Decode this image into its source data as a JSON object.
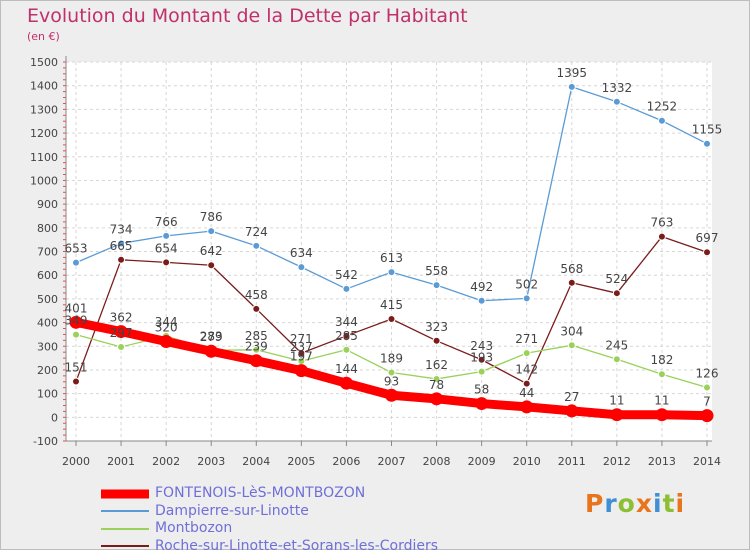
{
  "title": "Evolution du Montant de la Dette par Habitant",
  "unit_label": "(en €)",
  "logo": {
    "text": "Proxiti",
    "letters": [
      {
        "ch": "P",
        "color": "#e8741c"
      },
      {
        "ch": "r",
        "color": "#3f8fd3"
      },
      {
        "ch": "o",
        "color": "#8dbf32"
      },
      {
        "ch": "x",
        "color": "#e8741c"
      },
      {
        "ch": "i",
        "color": "#3f8fd3"
      },
      {
        "ch": "t",
        "color": "#8dbf32"
      },
      {
        "ch": "i",
        "color": "#e8741c"
      }
    ]
  },
  "chart_data": {
    "type": "line",
    "title": "Evolution du Montant de la Dette par Habitant",
    "ylabel": "(en €)",
    "x": [
      2000,
      2001,
      2002,
      2003,
      2004,
      2005,
      2006,
      2007,
      2008,
      2009,
      2010,
      2011,
      2012,
      2013,
      2014
    ],
    "ylim": [
      -100,
      1500
    ],
    "yticks": [
      -100,
      0,
      100,
      200,
      300,
      400,
      500,
      600,
      700,
      800,
      900,
      1000,
      1100,
      1200,
      1300,
      1400,
      1500
    ],
    "grid": true,
    "legend_position": "bottom",
    "series": [
      {
        "name": "FONTENOIS-LèS-MONTBOZON",
        "color": "#ff0000",
        "values": [
          401,
          362,
          320,
          279,
          239,
          197,
          144,
          93,
          78,
          58,
          44,
          27,
          11,
          11,
          7
        ]
      },
      {
        "name": "Dampierre-sur-Linotte",
        "color": "#5b9bd5",
        "values": [
          653,
          734,
          766,
          786,
          724,
          634,
          542,
          613,
          558,
          492,
          502,
          1395,
          1332,
          1252,
          1155
        ]
      },
      {
        "name": "Montbozon",
        "color": "#99d15a",
        "values": [
          349,
          297,
          344,
          283,
          285,
          237,
          285,
          189,
          162,
          193,
          271,
          304,
          245,
          182,
          126
        ]
      },
      {
        "name": "Roche-sur-Linotte-et-Sorans-les-Cordiers",
        "color": "#7b1c1c",
        "values": [
          151,
          665,
          654,
          642,
          458,
          271,
          344,
          415,
          323,
          243,
          142,
          568,
          524,
          763,
          697
        ]
      }
    ]
  }
}
